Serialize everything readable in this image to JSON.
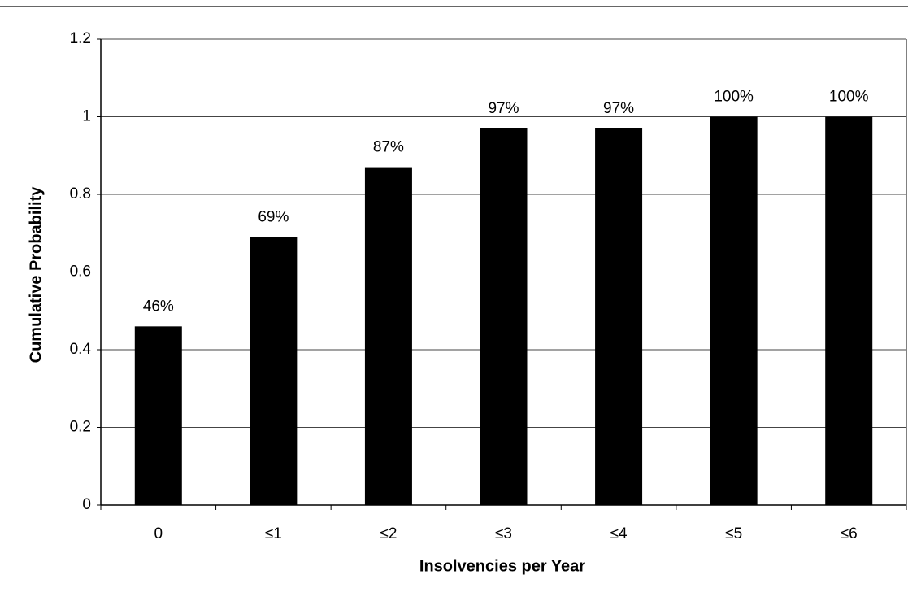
{
  "chart_data": {
    "type": "bar",
    "x_label": "Insolvencies per Year",
    "y_label": "Cumulative Probability",
    "categories": [
      "0",
      "≤1",
      "≤2",
      "≤3",
      "≤4",
      "≤5",
      "≤6"
    ],
    "values": [
      0.46,
      0.69,
      0.87,
      0.97,
      0.97,
      1,
      1
    ],
    "value_labels": [
      "46%",
      "69%",
      "87%",
      "97%",
      "97%",
      "100%",
      "100%"
    ],
    "color": "#000000",
    "ylim": [
      0,
      1.2
    ],
    "yticks": [
      0,
      0.2,
      0.4,
      0.6,
      0.8,
      1,
      1.2
    ],
    "grid": true
  }
}
